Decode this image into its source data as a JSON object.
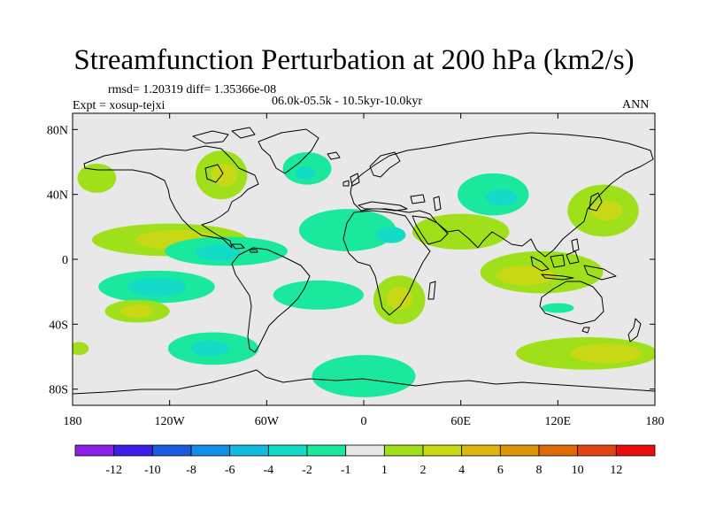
{
  "title": "Streamfunction Perturbation at 200 hPa (km2/s)",
  "stats_line": "rmsd= 1.20319 diff= 1.35366e-08",
  "experiment": "Expt = xosup-tejxi",
  "period": "06.0k-05.5k - 10.5kyr-10.0kyr",
  "season": "ANN",
  "map": {
    "projection": "cylindrical-equidistant",
    "lon_range": [
      -180,
      180
    ],
    "lat_range": [
      -90,
      90
    ],
    "background_color": "#e8e8e8",
    "coastline_color": "#000000",
    "lat_ticks": [
      {
        "lat": 80,
        "label": "80N"
      },
      {
        "lat": 40,
        "label": "40N"
      },
      {
        "lat": 0,
        "label": "0"
      },
      {
        "lat": -40,
        "label": "40S"
      },
      {
        "lat": -80,
        "label": "80S"
      }
    ],
    "lon_ticks": [
      {
        "lon": -180,
        "label": "180"
      },
      {
        "lon": -120,
        "label": "120W"
      },
      {
        "lon": -60,
        "label": "60W"
      },
      {
        "lon": 0,
        "label": "0"
      },
      {
        "lon": 60,
        "label": "60E"
      },
      {
        "lon": 120,
        "label": "120E"
      },
      {
        "lon": 180,
        "label": "180"
      }
    ]
  },
  "colorbar": {
    "colors": [
      "#8b1fe6",
      "#3d1ee6",
      "#1a5be0",
      "#1290e8",
      "#12bde0",
      "#12dcc8",
      "#1ae89c",
      "#e8e8e8",
      "#a0e01a",
      "#c8d814",
      "#dcb80c",
      "#e09408",
      "#e06a08",
      "#e44410",
      "#e80e0e"
    ],
    "labels": [
      "-12",
      "-10",
      "-8",
      "-6",
      "-4",
      "-2",
      "-1",
      "1",
      "2",
      "4",
      "6",
      "8",
      "10",
      "12"
    ]
  },
  "anomalies": [
    {
      "lon": -165,
      "lat": 50,
      "rlon": 12,
      "rlat": 9,
      "value": 1.5
    },
    {
      "lon": -88,
      "lat": 52,
      "rlon": 16,
      "rlat": 15,
      "value": 1.5
    },
    {
      "lon": -86,
      "lat": 52,
      "rlon": 8,
      "rlat": 7,
      "value": 2.5
    },
    {
      "lon": -35,
      "lat": 56,
      "rlon": 15,
      "rlat": 10,
      "value": -1.5
    },
    {
      "lon": -36,
      "lat": 53,
      "rlon": 6,
      "rlat": 4,
      "value": -2.5
    },
    {
      "lon": -120,
      "lat": 12,
      "rlon": 48,
      "rlat": 10,
      "value": 1.5
    },
    {
      "lon": -115,
      "lat": 12,
      "rlon": 26,
      "rlat": 6,
      "value": 2.5
    },
    {
      "lon": -10,
      "lat": 18,
      "rlon": 30,
      "rlat": 13,
      "value": -1.5
    },
    {
      "lon": 17,
      "lat": 15,
      "rlon": 9,
      "rlat": 5,
      "value": -2.5
    },
    {
      "lon": -85,
      "lat": 5,
      "rlon": 38,
      "rlat": 9,
      "value": -1.5
    },
    {
      "lon": -90,
      "lat": 4,
      "rlon": 14,
      "rlat": 5,
      "value": -2.5
    },
    {
      "lon": -128,
      "lat": -17,
      "rlon": 36,
      "rlat": 10,
      "value": -1.5
    },
    {
      "lon": -128,
      "lat": -17,
      "rlon": 18,
      "rlat": 6,
      "value": -2.5
    },
    {
      "lon": -28,
      "lat": -22,
      "rlon": 28,
      "rlat": 9,
      "value": -1.5
    },
    {
      "lon": -140,
      "lat": -32,
      "rlon": 20,
      "rlat": 7,
      "value": 1.5
    },
    {
      "lon": -140,
      "lat": -32,
      "rlon": 10,
      "rlat": 4,
      "value": 2.5
    },
    {
      "lon": -93,
      "lat": -55,
      "rlon": 28,
      "rlat": 10,
      "value": -1.5
    },
    {
      "lon": -95,
      "lat": -55,
      "rlon": 12,
      "rlat": 5,
      "value": -2.5
    },
    {
      "lon": -176,
      "lat": -55,
      "rlon": 6,
      "rlat": 4,
      "value": 1.5
    },
    {
      "lon": 22,
      "lat": -25,
      "rlon": 16,
      "rlat": 15,
      "value": 1.5
    },
    {
      "lon": 22,
      "lat": -24,
      "rlon": 8,
      "rlat": 7,
      "value": 2.5
    },
    {
      "lon": 0,
      "lat": -72,
      "rlon": 32,
      "rlat": 13,
      "value": -1.5
    },
    {
      "lon": 80,
      "lat": 40,
      "rlon": 22,
      "rlat": 13,
      "value": -1.5
    },
    {
      "lon": 85,
      "lat": 38,
      "rlon": 10,
      "rlat": 5,
      "value": -2.5
    },
    {
      "lon": 60,
      "lat": 17,
      "rlon": 30,
      "rlat": 11,
      "value": 1.5
    },
    {
      "lon": 110,
      "lat": -8,
      "rlon": 38,
      "rlat": 13,
      "value": 1.5
    },
    {
      "lon": 100,
      "lat": -10,
      "rlon": 18,
      "rlat": 6,
      "value": 2.5
    },
    {
      "lon": 148,
      "lat": 30,
      "rlon": 22,
      "rlat": 16,
      "value": 1.5
    },
    {
      "lon": 150,
      "lat": 30,
      "rlon": 10,
      "rlat": 6,
      "value": 2.5
    },
    {
      "lon": 120,
      "lat": -30,
      "rlon": 10,
      "rlat": 3,
      "value": -1.5
    },
    {
      "lon": 138,
      "lat": -58,
      "rlon": 44,
      "rlat": 10,
      "value": 1.5
    },
    {
      "lon": 150,
      "lat": -58,
      "rlon": 22,
      "rlat": 6,
      "value": 2.5
    }
  ]
}
